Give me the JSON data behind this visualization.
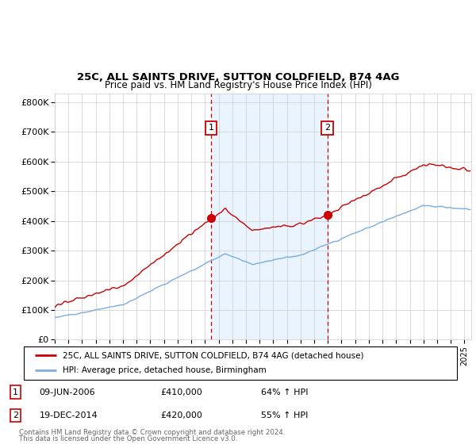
{
  "title1": "25C, ALL SAINTS DRIVE, SUTTON COLDFIELD, B74 4AG",
  "title2": "Price paid vs. HM Land Registry's House Price Index (HPI)",
  "ylabel_ticks": [
    "£0",
    "£100K",
    "£200K",
    "£300K",
    "£400K",
    "£500K",
    "£600K",
    "£700K",
    "£800K"
  ],
  "ytick_values": [
    0,
    100000,
    200000,
    300000,
    400000,
    500000,
    600000,
    700000,
    800000
  ],
  "ylim": [
    0,
    830000
  ],
  "xlim_start": 1995.0,
  "xlim_end": 2025.5,
  "purchase1_x": 2006.44,
  "purchase1_y": 410000,
  "purchase1_label": "09-JUN-2006",
  "purchase1_price": "£410,000",
  "purchase1_hpi": "64% ↑ HPI",
  "purchase2_x": 2014.96,
  "purchase2_y": 420000,
  "purchase2_label": "19-DEC-2014",
  "purchase2_price": "£420,000",
  "purchase2_hpi": "55% ↑ HPI",
  "legend_line1": "25C, ALL SAINTS DRIVE, SUTTON COLDFIELD, B74 4AG (detached house)",
  "legend_line2": "HPI: Average price, detached house, Birmingham",
  "footer1": "Contains HM Land Registry data © Crown copyright and database right 2024.",
  "footer2": "This data is licensed under the Open Government Licence v3.0.",
  "red_color": "#cc0000",
  "blue_color": "#7aade0",
  "bg_highlight": "#ddeeff",
  "grid_color": "#cccccc",
  "box_color": "#cc0000"
}
